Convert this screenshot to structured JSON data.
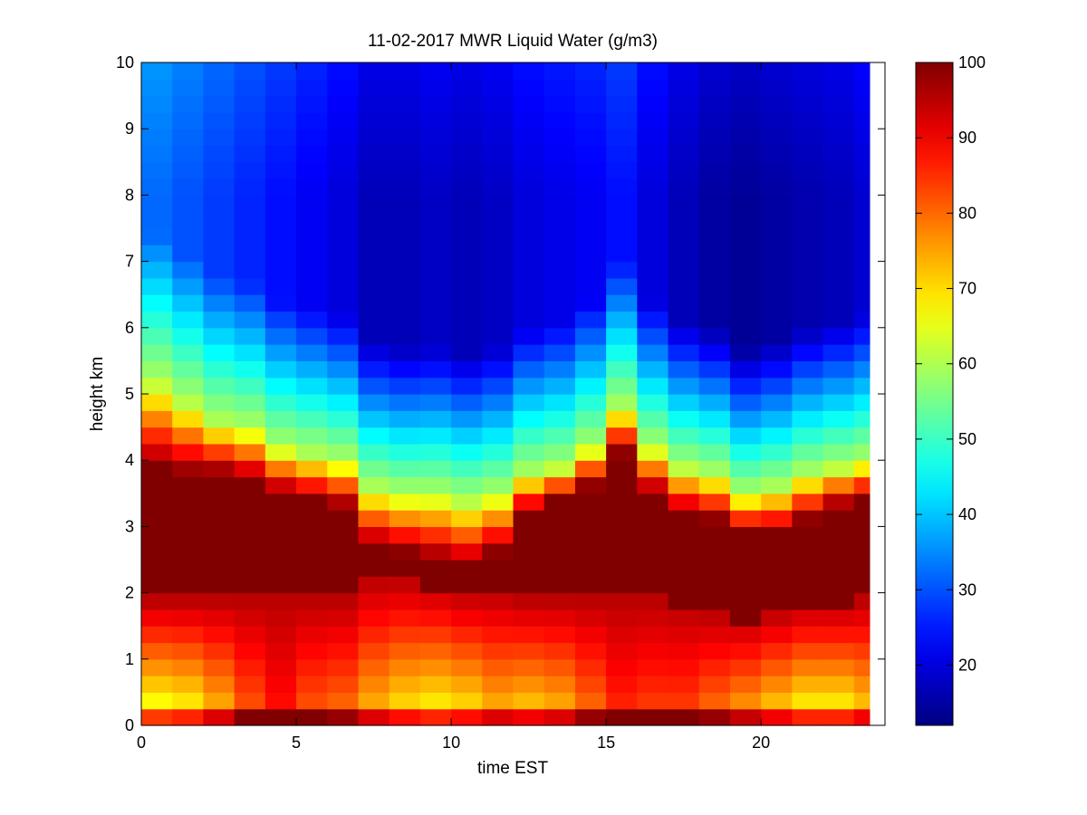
{
  "chart_data": {
    "type": "heatmap",
    "title": "11-02-2017 MWR Liquid Water (g/m3)",
    "xlabel": "time EST",
    "ylabel": "height km",
    "xlim": [
      0,
      24
    ],
    "ylim": [
      0,
      10
    ],
    "x_ticks": [
      0,
      5,
      10,
      15,
      20
    ],
    "y_ticks": [
      0,
      1,
      2,
      3,
      4,
      5,
      6,
      7,
      8,
      9,
      10
    ],
    "colorbar": {
      "colormap": "jet",
      "range": [
        12,
        100
      ],
      "ticks": [
        20,
        30,
        40,
        50,
        60,
        70,
        80,
        90,
        100
      ]
    },
    "time_hours": [
      0,
      1,
      2,
      3,
      4,
      5,
      6,
      7,
      8,
      9,
      10,
      11,
      12,
      13,
      14,
      15,
      16,
      17,
      18,
      19,
      20,
      21,
      22,
      23
    ],
    "height_km": [
      0.0,
      0.25,
      0.5,
      0.75,
      1.0,
      1.25,
      1.5,
      1.75,
      2.0,
      2.25,
      2.5,
      2.75,
      3.0,
      3.25,
      3.5,
      3.75,
      4.0,
      4.25,
      4.5,
      4.75,
      5.0,
      5.25,
      5.5,
      5.75,
      6.0,
      6.25,
      6.5,
      6.75,
      7.0,
      7.25,
      7.5,
      7.75,
      8.0,
      8.25,
      8.5,
      8.75,
      9.0,
      9.25,
      9.5,
      9.75
    ],
    "profiles": {
      "cloud_top_km": [
        5.2,
        4.9,
        4.6,
        4.5,
        4.2,
        4.1,
        4.0,
        3.6,
        3.5,
        3.5,
        3.4,
        3.5,
        3.8,
        3.9,
        4.2,
        4.8,
        4.2,
        3.9,
        3.8,
        3.5,
        3.6,
        3.8,
        3.9,
        4.0
      ],
      "core_top_km": [
        3.9,
        3.8,
        3.8,
        3.7,
        3.5,
        3.4,
        3.3,
        2.7,
        2.6,
        2.5,
        2.4,
        2.6,
        3.2,
        3.4,
        3.6,
        4.1,
        3.5,
        3.2,
        3.1,
        2.9,
        2.9,
        3.1,
        3.3,
        3.4
      ],
      "core_bottom_km": [
        1.9,
        1.9,
        1.9,
        1.9,
        1.9,
        1.9,
        1.9,
        2.2,
        2.2,
        2.1,
        2.0,
        2.0,
        1.9,
        1.9,
        1.9,
        1.9,
        1.9,
        1.8,
        1.7,
        1.6,
        1.7,
        1.8,
        1.8,
        1.9
      ],
      "low_level_min": [
        66,
        68,
        74,
        82,
        88,
        82,
        80,
        74,
        70,
        68,
        70,
        74,
        72,
        74,
        80,
        86,
        84,
        84,
        80,
        76,
        72,
        68,
        68,
        72
      ],
      "upper_level": [
        32,
        30,
        28,
        26,
        24,
        22,
        20,
        17,
        17,
        18,
        17,
        18,
        20,
        21,
        22,
        24,
        20,
        17,
        15,
        14,
        15,
        16,
        17,
        19
      ]
    }
  }
}
